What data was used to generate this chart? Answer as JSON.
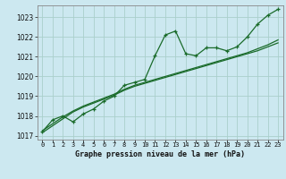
{
  "title": "Graphe pression niveau de la mer (hPa)",
  "bg_color": "#cce8f0",
  "grid_color": "#aacfcc",
  "line_color": "#1a6b2a",
  "x_labels": [
    "0",
    "1",
    "2",
    "3",
    "4",
    "5",
    "6",
    "7",
    "8",
    "9",
    "10",
    "11",
    "12",
    "13",
    "14",
    "15",
    "16",
    "17",
    "18",
    "19",
    "20",
    "21",
    "22",
    "23"
  ],
  "ylim": [
    1016.8,
    1023.6
  ],
  "yticks": [
    1017,
    1018,
    1019,
    1020,
    1021,
    1022,
    1023
  ],
  "series1": [
    1017.2,
    1017.8,
    1018.0,
    1017.7,
    1018.1,
    1018.35,
    1018.75,
    1019.0,
    1019.55,
    1019.7,
    1019.85,
    1021.05,
    1022.1,
    1022.3,
    1021.15,
    1021.05,
    1021.45,
    1021.45,
    1021.3,
    1021.5,
    1022.0,
    1022.65,
    1023.1,
    1023.4
  ],
  "series2": [
    1017.15,
    1017.5,
    1017.85,
    1018.2,
    1018.45,
    1018.65,
    1018.85,
    1019.05,
    1019.3,
    1019.5,
    1019.65,
    1019.8,
    1019.95,
    1020.1,
    1020.25,
    1020.4,
    1020.55,
    1020.7,
    1020.85,
    1021.0,
    1021.15,
    1021.3,
    1021.5,
    1021.7
  ],
  "series3": [
    1017.25,
    1017.6,
    1017.95,
    1018.25,
    1018.5,
    1018.7,
    1018.9,
    1019.1,
    1019.35,
    1019.55,
    1019.7,
    1019.85,
    1020.0,
    1020.15,
    1020.3,
    1020.45,
    1020.6,
    1020.75,
    1020.9,
    1021.05,
    1021.2,
    1021.4,
    1021.6,
    1021.85
  ]
}
